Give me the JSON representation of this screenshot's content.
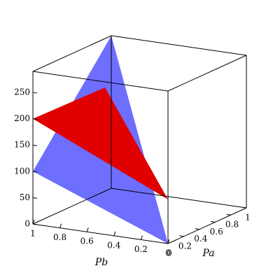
{
  "chart_data": {
    "type": "surface3d",
    "x_label": "Pb",
    "y_label": "Pa",
    "xlim": [
      0,
      1
    ],
    "ylim": [
      0,
      1
    ],
    "zlim": [
      0,
      290
    ],
    "xticks": [
      1,
      0.8,
      0.6,
      0.4,
      0.2,
      0
    ],
    "yticks": [
      0,
      0.2,
      0.4,
      0.6,
      0.8,
      1
    ],
    "zticks": [
      0,
      50,
      100,
      150,
      200,
      250
    ],
    "surfaces": [
      {
        "color": "#5555ff",
        "opacity": 0.85,
        "vertices": [
          [
            1,
            0,
            100
          ],
          [
            0,
            0,
            0
          ],
          [
            1,
            1,
            290
          ]
        ]
      },
      {
        "color": "#e00000",
        "opacity": 1,
        "vertices": [
          [
            1,
            0,
            200
          ],
          [
            0,
            0,
            84
          ],
          [
            1,
            0.92,
            197
          ]
        ]
      }
    ]
  }
}
